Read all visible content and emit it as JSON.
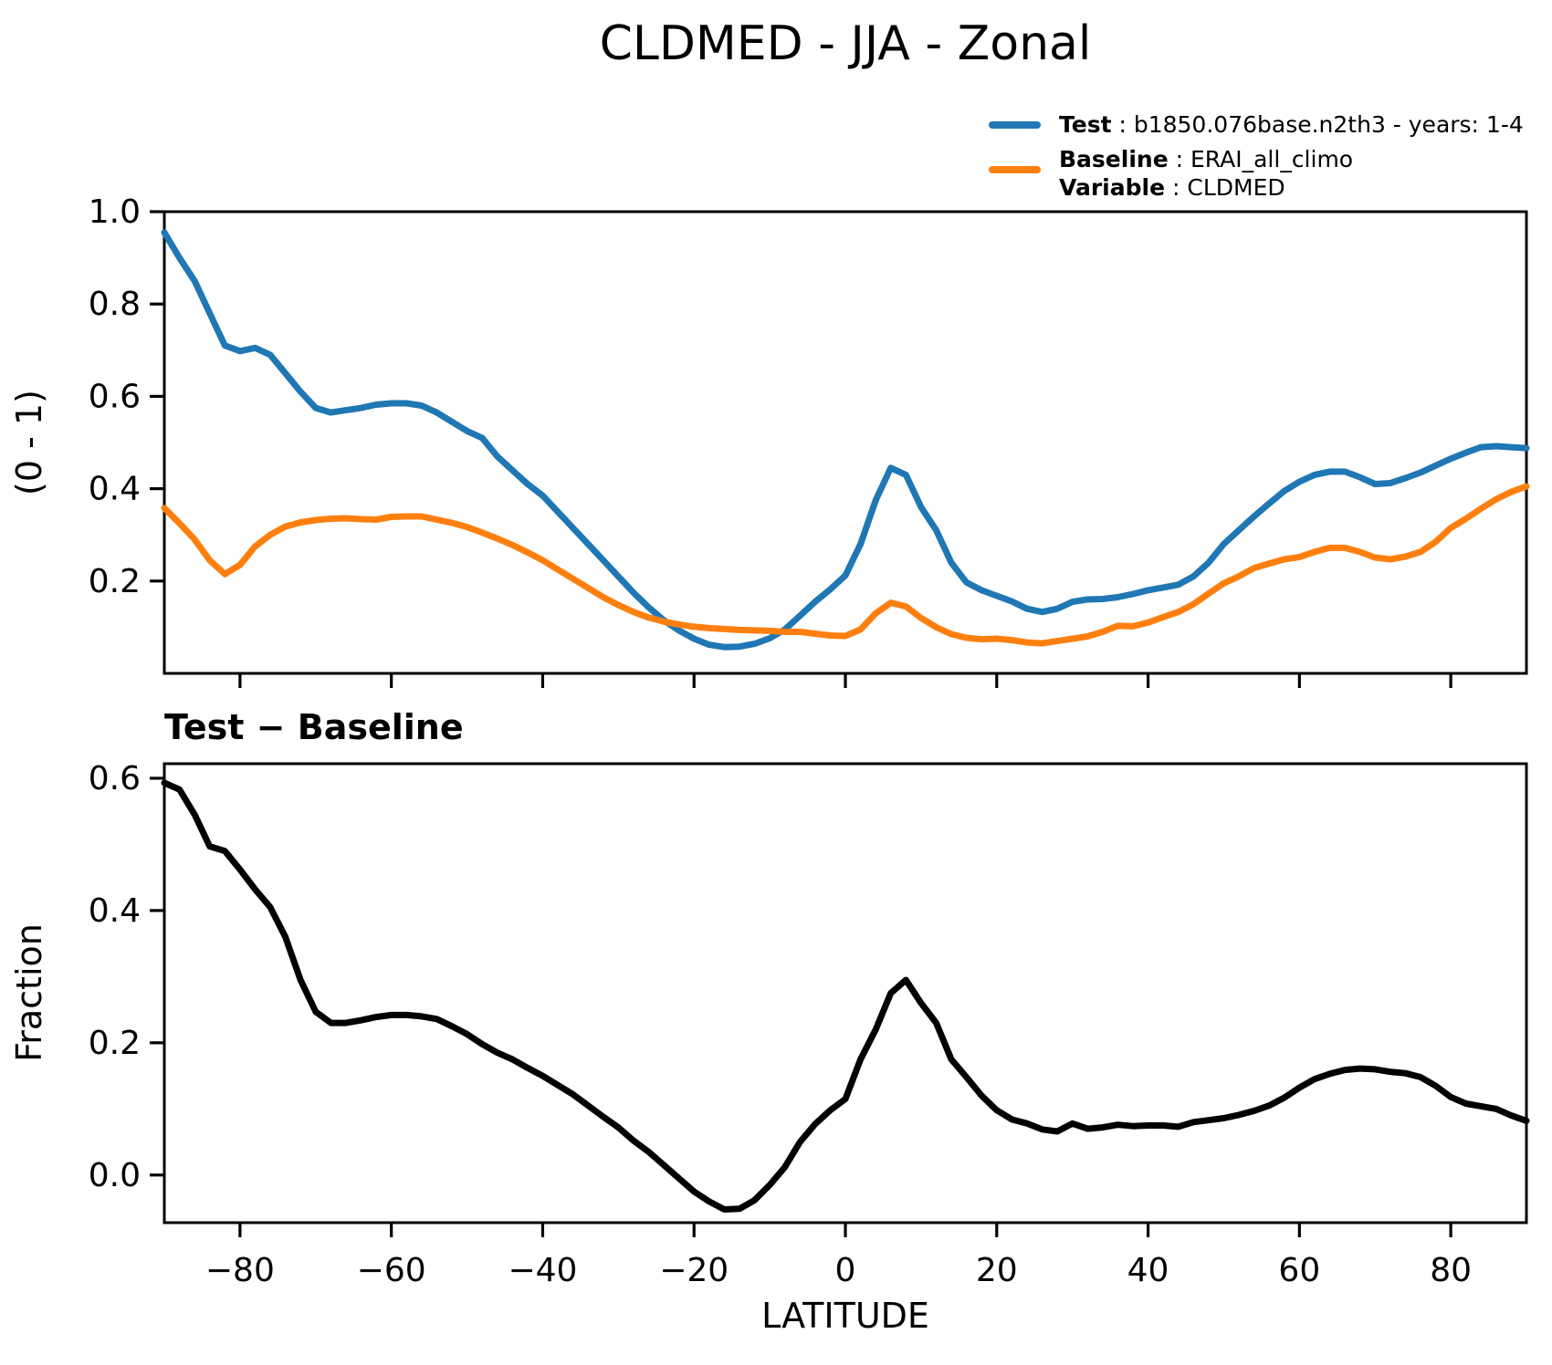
{
  "title": "CLDMED - JJA - Zonal",
  "legend": {
    "test": {
      "name": "Test",
      "rest": " : b1850.076base.n2th3 - years: 1-4",
      "color": "#1f77b4"
    },
    "baseline": {
      "name": "Baseline",
      "rest": " : ERAI_all_climo",
      "color": "#ff7f0e"
    },
    "variable": {
      "name": "Variable",
      "rest": " : CLDMED"
    }
  },
  "chart_data": {
    "type": "line",
    "xlabel": "LATITUDE",
    "xlim": [
      -90,
      90
    ],
    "grid": false,
    "legend_position": "upper-right-outside",
    "xticks": {
      "values": [
        -80,
        -60,
        -40,
        -20,
        0,
        20,
        40,
        60,
        80
      ],
      "labels": [
        "−80",
        "−60",
        "−40",
        "−20",
        "0",
        "20",
        "40",
        "60",
        "80"
      ]
    },
    "x": [
      -90,
      -88,
      -86,
      -84,
      -82,
      -80,
      -78,
      -76,
      -74,
      -72,
      -70,
      -68,
      -66,
      -64,
      -62,
      -60,
      -58,
      -56,
      -54,
      -52,
      -50,
      -48,
      -46,
      -44,
      -42,
      -40,
      -38,
      -36,
      -34,
      -32,
      -30,
      -28,
      -26,
      -24,
      -22,
      -20,
      -18,
      -16,
      -14,
      -12,
      -10,
      -8,
      -6,
      -4,
      -2,
      0,
      2,
      4,
      6,
      8,
      10,
      12,
      14,
      16,
      18,
      20,
      22,
      24,
      26,
      28,
      30,
      32,
      34,
      36,
      38,
      40,
      42,
      44,
      46,
      48,
      50,
      52,
      54,
      56,
      58,
      60,
      62,
      64,
      66,
      68,
      70,
      72,
      74,
      76,
      78,
      80,
      82,
      84,
      86,
      88,
      90
    ],
    "panels": [
      {
        "id": "top",
        "ylabel": "(0 - 1)",
        "ylim": [
          0.0,
          1.0
        ],
        "yticks": {
          "values": [
            1.0,
            0.8,
            0.6,
            0.4,
            0.2
          ],
          "labels": [
            "1.0",
            "0.8",
            "0.6",
            "0.4",
            "0.2"
          ]
        },
        "show_xtick_labels": false,
        "series": [
          {
            "name": "Test",
            "color": "#1f77b4",
            "values": [
              0.955,
              0.9,
              0.85,
              0.78,
              0.71,
              0.698,
              0.705,
              0.69,
              0.65,
              0.61,
              0.575,
              0.565,
              0.57,
              0.575,
              0.582,
              0.585,
              0.585,
              0.58,
              0.565,
              0.545,
              0.525,
              0.51,
              0.47,
              0.44,
              0.41,
              0.385,
              0.35,
              0.315,
              0.28,
              0.245,
              0.21,
              0.175,
              0.143,
              0.115,
              0.093,
              0.075,
              0.062,
              0.057,
              0.058,
              0.064,
              0.076,
              0.095,
              0.125,
              0.155,
              0.182,
              0.212,
              0.28,
              0.375,
              0.445,
              0.43,
              0.36,
              0.31,
              0.24,
              0.197,
              0.18,
              0.168,
              0.156,
              0.14,
              0.133,
              0.14,
              0.155,
              0.16,
              0.161,
              0.165,
              0.172,
              0.18,
              0.186,
              0.192,
              0.21,
              0.24,
              0.28,
              0.31,
              0.34,
              0.368,
              0.395,
              0.415,
              0.43,
              0.437,
              0.437,
              0.425,
              0.41,
              0.412,
              0.423,
              0.435,
              0.45,
              0.465,
              0.478,
              0.49,
              0.492,
              0.49,
              0.488
            ]
          },
          {
            "name": "Baseline",
            "color": "#ff7f0e",
            "values": [
              0.358,
              0.325,
              0.29,
              0.245,
              0.215,
              0.235,
              0.275,
              0.3,
              0.318,
              0.327,
              0.332,
              0.335,
              0.336,
              0.334,
              0.333,
              0.339,
              0.34,
              0.34,
              0.333,
              0.326,
              0.317,
              0.305,
              0.292,
              0.278,
              0.262,
              0.245,
              0.225,
              0.205,
              0.185,
              0.165,
              0.148,
              0.133,
              0.121,
              0.112,
              0.106,
              0.101,
              0.098,
              0.096,
              0.094,
              0.093,
              0.092,
              0.09,
              0.09,
              0.086,
              0.082,
              0.081,
              0.095,
              0.13,
              0.153,
              0.145,
              0.12,
              0.1,
              0.085,
              0.077,
              0.074,
              0.075,
              0.072,
              0.067,
              0.065,
              0.07,
              0.075,
              0.08,
              0.09,
              0.103,
              0.102,
              0.11,
              0.122,
              0.133,
              0.15,
              0.173,
              0.195,
              0.21,
              0.228,
              0.238,
              0.247,
              0.252,
              0.263,
              0.272,
              0.272,
              0.263,
              0.251,
              0.247,
              0.253,
              0.263,
              0.285,
              0.315,
              0.335,
              0.357,
              0.377,
              0.393,
              0.405
            ]
          }
        ]
      },
      {
        "id": "bottom",
        "title": "Test − Baseline",
        "ylabel": "Fraction",
        "ylim": [
          -0.072,
          0.622
        ],
        "yticks": {
          "values": [
            0.6,
            0.4,
            0.2,
            0.0
          ],
          "labels": [
            "0.6",
            "0.4",
            "0.2",
            "0.0"
          ]
        },
        "show_xtick_labels": true,
        "series": [
          {
            "name": "Test - Baseline",
            "color": "#000000",
            "values": [
              0.593,
              0.583,
              0.545,
              0.497,
              0.49,
              0.462,
              0.432,
              0.405,
              0.36,
              0.295,
              0.247,
              0.23,
              0.23,
              0.234,
              0.239,
              0.242,
              0.242,
              0.24,
              0.236,
              0.225,
              0.213,
              0.198,
              0.185,
              0.175,
              0.162,
              0.15,
              0.136,
              0.122,
              0.105,
              0.088,
              0.072,
              0.052,
              0.035,
              0.015,
              -0.005,
              -0.025,
              -0.04,
              -0.052,
              -0.051,
              -0.038,
              -0.015,
              0.012,
              0.05,
              0.077,
              0.098,
              0.115,
              0.175,
              0.22,
              0.275,
              0.295,
              0.26,
              0.23,
              0.175,
              0.148,
              0.12,
              0.098,
              0.084,
              0.078,
              0.069,
              0.066,
              0.078,
              0.07,
              0.072,
              0.076,
              0.074,
              0.075,
              0.075,
              0.073,
              0.08,
              0.083,
              0.086,
              0.091,
              0.097,
              0.105,
              0.117,
              0.132,
              0.145,
              0.153,
              0.159,
              0.161,
              0.16,
              0.156,
              0.154,
              0.148,
              0.135,
              0.118,
              0.108,
              0.104,
              0.1,
              0.09,
              0.082
            ]
          }
        ]
      }
    ]
  }
}
